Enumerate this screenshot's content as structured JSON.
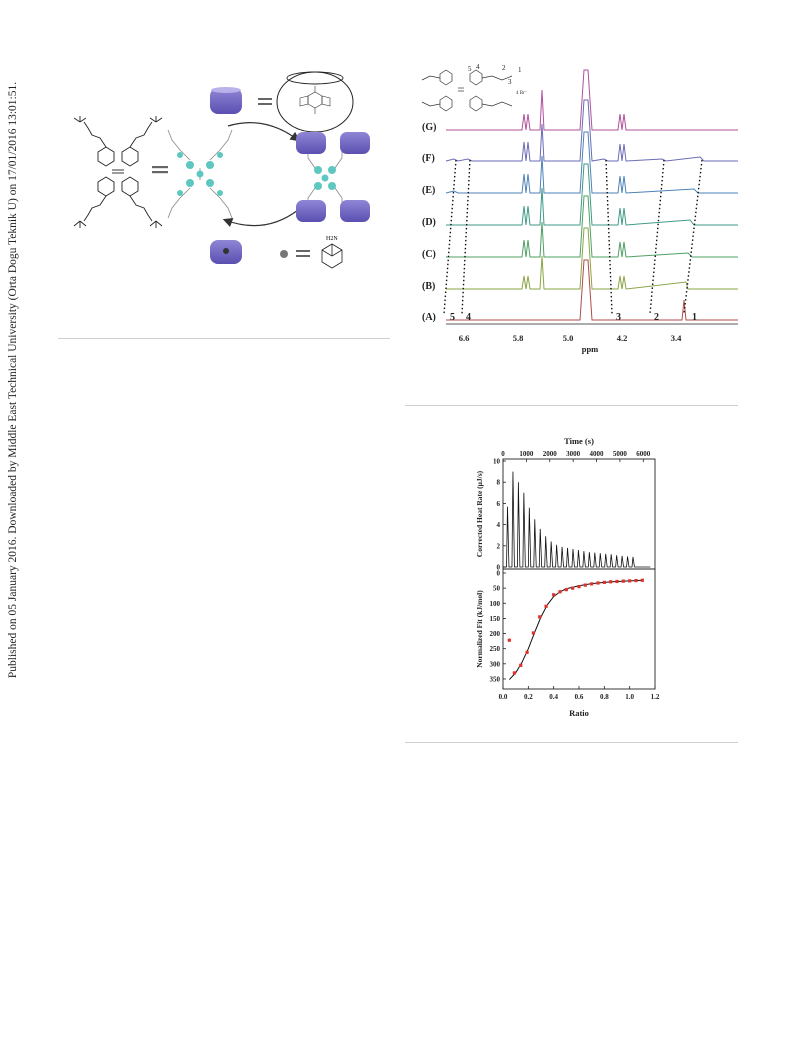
{
  "side_note": "Published on 05 January 2016. Downloaded by Middle East Technical University (Orta Dogu Teknik U) on 17/01/2016 13:01:51.",
  "scheme": {
    "guest_label": "H2N"
  },
  "nmr": {
    "spectra": [
      "(G)",
      "(F)",
      "(E)",
      "(D)",
      "(C)",
      "(B)",
      "(A)"
    ],
    "peak_numbers": [
      "5",
      "4",
      "3",
      "2",
      "1"
    ],
    "header_numbers": [
      "5",
      "4",
      "2",
      "1",
      "3"
    ],
    "counterion": "4 Br⁻",
    "x_ticks": [
      "6.6",
      "5.8",
      "5.0",
      "4.2",
      "3.4"
    ],
    "x_label": "ppm"
  },
  "chart_data": {
    "type": "scatter",
    "title": "",
    "top_panel": {
      "xlabel": "Time (s)",
      "ylabel": "Corrected Heat Rate (μJ/s)",
      "xlim": [
        0,
        6500
      ],
      "ylim": [
        0,
        10
      ],
      "x_ticks": [
        "0",
        "1000",
        "2000",
        "3000",
        "4000",
        "5000",
        "6000"
      ],
      "y_ticks": [
        "0",
        "2",
        "4",
        "6",
        "8",
        "10"
      ],
      "injection_peaks": [
        5.7,
        9.0,
        8.0,
        7.0,
        5.6,
        4.5,
        3.6,
        2.9,
        2.4,
        2.1,
        1.9,
        1.8,
        1.7,
        1.6,
        1.5,
        1.4,
        1.35,
        1.3,
        1.25,
        1.2,
        1.1,
        1.05,
        1.0,
        0.95
      ]
    },
    "bottom_panel": {
      "xlabel": "Ratio",
      "ylabel": "Normalized Fit (kJ/mol)",
      "xlim": [
        0.0,
        1.2
      ],
      "ylim": [
        -370,
        0
      ],
      "x_ticks": [
        "0.0",
        "0.2",
        "0.4",
        "0.6",
        "0.8",
        "1.0",
        "1.2"
      ],
      "y_ticks": [
        "0",
        "50",
        "100",
        "150",
        "200",
        "250",
        "300",
        "350"
      ],
      "points": [
        [
          0.05,
          -222
        ],
        [
          0.09,
          -330
        ],
        [
          0.14,
          -305
        ],
        [
          0.19,
          -262
        ],
        [
          0.24,
          -198
        ],
        [
          0.29,
          -145
        ],
        [
          0.34,
          -110
        ],
        [
          0.4,
          -72
        ],
        [
          0.45,
          -62
        ],
        [
          0.5,
          -55
        ],
        [
          0.55,
          -50
        ],
        [
          0.6,
          -45
        ],
        [
          0.65,
          -40
        ],
        [
          0.7,
          -36
        ],
        [
          0.75,
          -33
        ],
        [
          0.8,
          -31
        ],
        [
          0.85,
          -29
        ],
        [
          0.9,
          -28
        ],
        [
          0.95,
          -27
        ],
        [
          1.0,
          -26
        ],
        [
          1.05,
          -25
        ],
        [
          1.1,
          -24
        ]
      ],
      "fit_curve": [
        [
          0.05,
          -352
        ],
        [
          0.1,
          -330
        ],
        [
          0.15,
          -295
        ],
        [
          0.2,
          -250
        ],
        [
          0.25,
          -196
        ],
        [
          0.3,
          -145
        ],
        [
          0.35,
          -105
        ],
        [
          0.4,
          -78
        ],
        [
          0.45,
          -62
        ],
        [
          0.5,
          -52
        ],
        [
          0.6,
          -42
        ],
        [
          0.7,
          -35
        ],
        [
          0.8,
          -31
        ],
        [
          0.9,
          -28
        ],
        [
          1.0,
          -26
        ],
        [
          1.1,
          -24
        ]
      ]
    }
  }
}
